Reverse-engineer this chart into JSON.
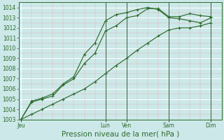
{
  "xlabel": "Pression niveau de la mer( hPa )",
  "bg_color": "#cce8e8",
  "grid_color": "#b0d8d8",
  "line_color": "#2d6b2d",
  "ylim": [
    1003,
    1014.5
  ],
  "yticks": [
    1003,
    1004,
    1005,
    1006,
    1007,
    1008,
    1009,
    1010,
    1011,
    1012,
    1013,
    1014
  ],
  "xtick_labels": [
    "Jeu",
    "Lun",
    "Ven",
    "Sam",
    "Dim"
  ],
  "xtick_pos": [
    0,
    4,
    5,
    7,
    9
  ],
  "xlim": [
    -0.1,
    9.5
  ],
  "series": [
    {
      "x": [
        0,
        0.5,
        1.0,
        1.5,
        2.0,
        2.5,
        3.0,
        3.5,
        4.0,
        4.5,
        5.0,
        5.5,
        6.0,
        6.5,
        7.0,
        7.5,
        8.0,
        8.5,
        9.0
      ],
      "y": [
        1003.0,
        1004.7,
        1005.0,
        1005.3,
        1006.4,
        1007.0,
        1008.5,
        1009.5,
        1011.7,
        1012.2,
        1013.0,
        1013.2,
        1013.9,
        1013.9,
        1013.1,
        1013.1,
        1013.4,
        1013.2,
        1013.1
      ]
    },
    {
      "x": [
        0,
        0.5,
        1.0,
        1.5,
        2.0,
        2.5,
        3.0,
        3.5,
        4.0,
        4.5,
        5.0,
        5.5,
        6.0,
        6.5,
        7.0,
        7.5,
        8.0,
        8.5,
        9.0
      ],
      "y": [
        1003.0,
        1004.8,
        1005.1,
        1005.5,
        1006.5,
        1007.2,
        1009.4,
        1010.5,
        1012.7,
        1013.3,
        1013.5,
        1013.8,
        1014.0,
        1013.8,
        1013.0,
        1012.9,
        1012.7,
        1012.5,
        1013.0
      ]
    },
    {
      "x": [
        0,
        0.5,
        1.0,
        1.5,
        2.0,
        2.5,
        3.0,
        3.5,
        4.0,
        4.5,
        5.0,
        5.5,
        6.0,
        6.5,
        7.0,
        7.5,
        8.0,
        8.5,
        9.0
      ],
      "y": [
        1003.0,
        1003.5,
        1004.0,
        1004.5,
        1005.0,
        1005.5,
        1006.0,
        1006.7,
        1007.5,
        1008.3,
        1009.0,
        1009.8,
        1010.5,
        1011.2,
        1011.8,
        1012.0,
        1012.0,
        1012.2,
        1012.5
      ]
    }
  ],
  "vline_positions": [
    4.0,
    5.0,
    7.0,
    9.0
  ],
  "vline_color": "#3a5a3a",
  "spine_color": "#2d6b2d",
  "tick_color": "#2d6b2d",
  "xlabel_color": "#2d6b2d",
  "ylabel_fontsize": 5.5,
  "xlabel_fontsize": 7.5,
  "xtick_fontsize": 5.5,
  "ytick_fontsize": 5.5
}
